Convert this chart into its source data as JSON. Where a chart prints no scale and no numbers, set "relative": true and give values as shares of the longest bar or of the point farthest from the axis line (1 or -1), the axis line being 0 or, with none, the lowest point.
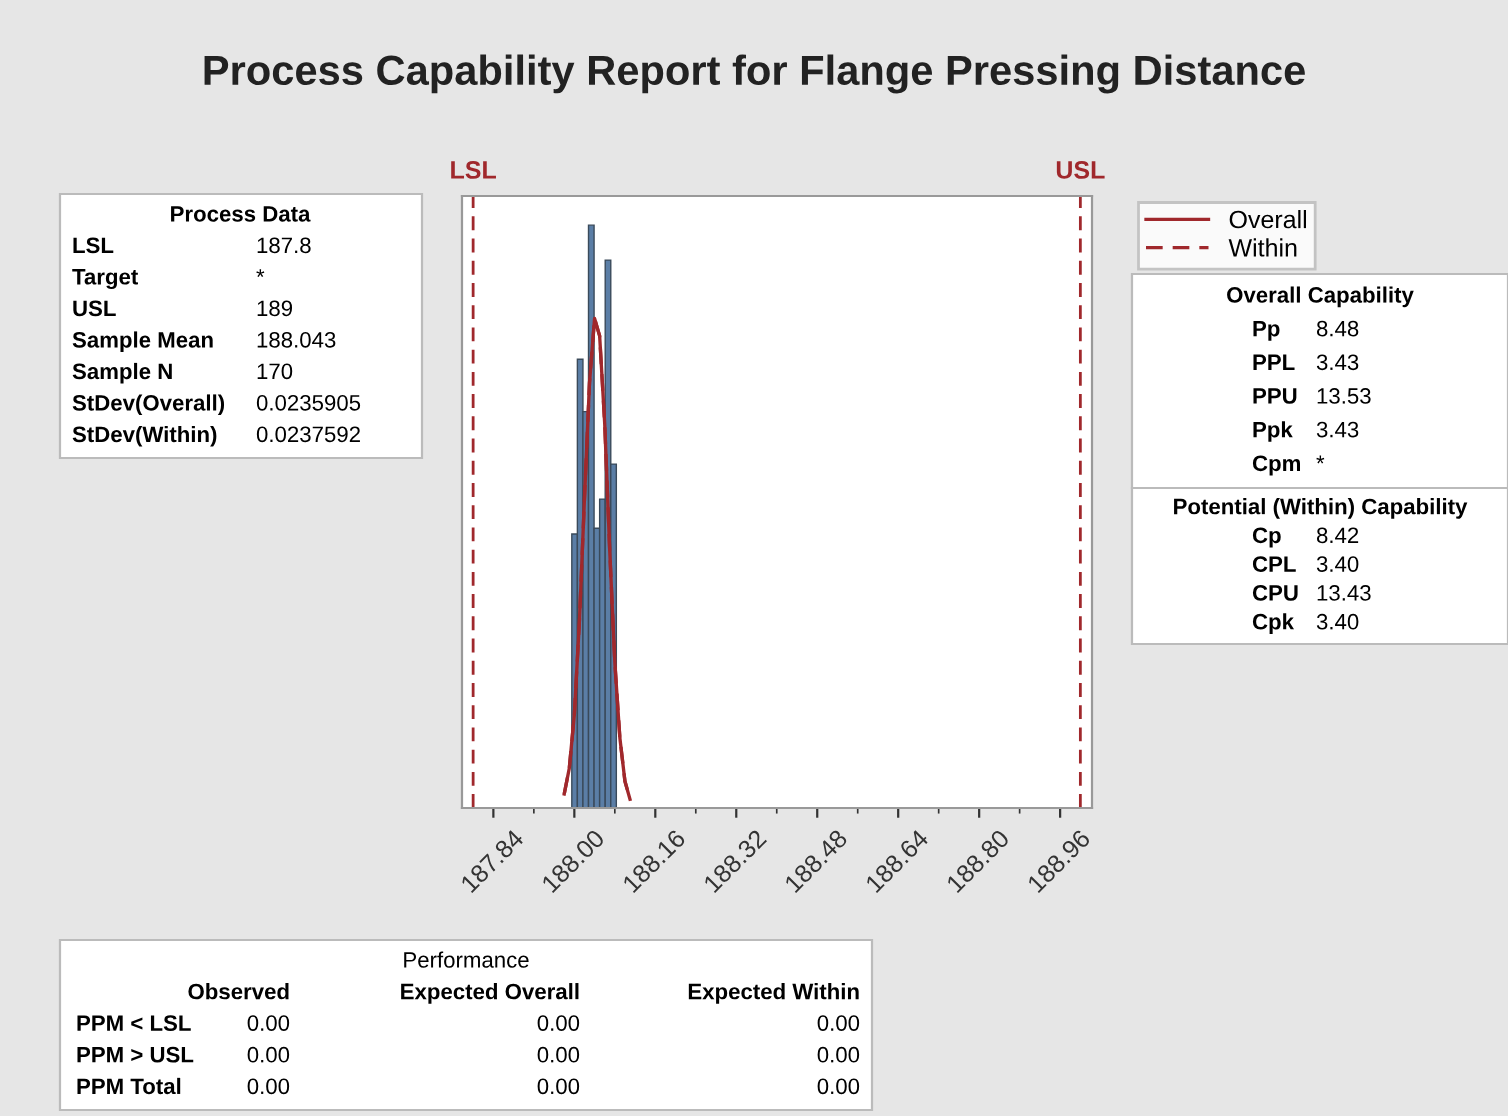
{
  "chart_data": {
    "type": "histogram",
    "title": "Process Capability Report for Flange Pressing Distance",
    "relative": true,
    "bins": [
      187.995,
      188.006,
      188.017,
      188.028,
      188.039,
      188.05,
      188.061,
      188.072,
      188.083
    ],
    "values": [
      0.47,
      0.77,
      0.68,
      1.0,
      0.48,
      0.53,
      0.94,
      0.59
    ],
    "color": "#5b7ea6",
    "series": [
      {
        "type": "line",
        "name": "Overall",
        "color": "#a0282c",
        "line_style": "solid",
        "x": [
          187.98,
          187.99,
          188.0,
          188.01,
          188.02,
          188.03,
          188.04,
          188.05,
          188.06,
          188.07,
          188.08,
          188.09,
          188.1,
          188.11
        ],
        "values": [
          0.024,
          0.068,
          0.16,
          0.32,
          0.53,
          0.73,
          0.84,
          0.81,
          0.66,
          0.44,
          0.25,
          0.12,
          0.046,
          0.015
        ]
      },
      {
        "type": "line",
        "name": "Within",
        "color": "#a0282c",
        "line_style": "dashed",
        "x": [
          187.98,
          187.99,
          188.0,
          188.01,
          188.02,
          188.03,
          188.04,
          188.05,
          188.06,
          188.07,
          188.08,
          188.09,
          188.1,
          188.11
        ],
        "values": [
          0.024,
          0.068,
          0.16,
          0.32,
          0.53,
          0.73,
          0.84,
          0.81,
          0.66,
          0.44,
          0.25,
          0.12,
          0.046,
          0.015
        ]
      }
    ],
    "xlim": [
      187.778,
      189.023
    ],
    "xticks": [
      187.84,
      {
        "value": 188.0,
        "label": "188.00"
      },
      188.16,
      188.32,
      188.48,
      188.64,
      {
        "value": 188.8,
        "label": "188.80"
      },
      188.96
    ],
    "ref_lines": [
      {
        "axis": "x",
        "value": 187.8,
        "label": "LSL",
        "color": "#a0282c",
        "line_style": "dashed"
      },
      {
        "axis": "x",
        "value": 189,
        "label": "USL",
        "color": "#a0282c",
        "line_style": "dashed"
      }
    ],
    "legend": "right",
    "grid": false,
    "annotations": [
      "Process Data\nLSL\t187.8\nTarget\t*\nUSL\t189\nSample Mean\t188.043\nSample N\t170\nStDev(Overall)\t0.0235905\nStDev(Within)\t0.0237592",
      "Overall Capability\nPp\t8.48\nPPL\t3.43\nPPU\t13.53\nPpk\t3.43\nCpm\t*",
      "Potential (Within) Capability\nCp\t8.42\nCPL\t3.40\nCPU\t13.43\nCpk\t3.40",
      "Performance\n\tObserved\tExpected Overall\tExpected Within\nPPM < LSL\t0.00\t0.00\t0.00\nPPM > USL\t0.00\t0.00\t0.00\nPPM Total\t0.00\t0.00\t0.00"
    ]
  }
}
